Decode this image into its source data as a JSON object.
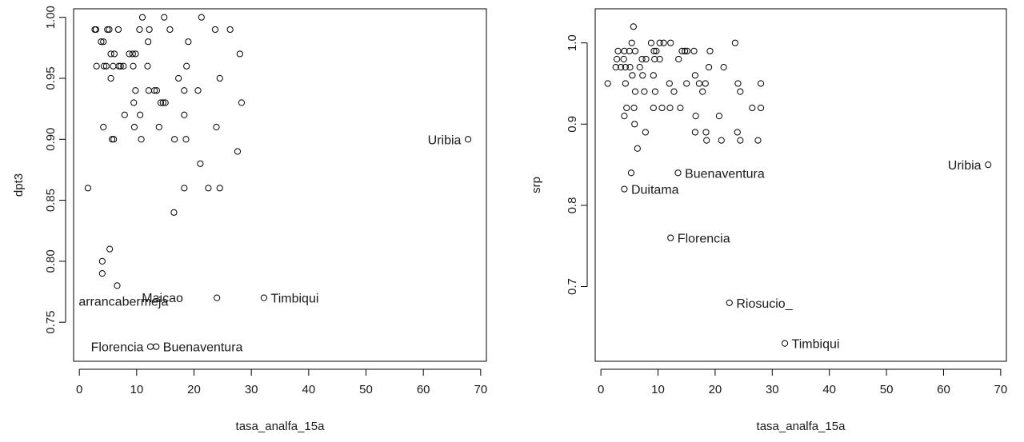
{
  "chart_data": [
    {
      "type": "scatter",
      "xlabel": "tasa_analfa_15a",
      "ylabel": "dpt3",
      "xlim": [
        -1,
        71
      ],
      "ylim": [
        0.718,
        1.007
      ],
      "x_ticks": [
        0,
        10,
        20,
        30,
        40,
        50,
        60,
        70
      ],
      "y_ticks": [
        0.75,
        0.8,
        0.85,
        0.9,
        0.95,
        1.0
      ],
      "y_tick_labels": [
        "0.75",
        "0.80",
        "0.85",
        "0.90",
        "0.95",
        "1.00"
      ],
      "points": [
        {
          "x": 2.7,
          "y": 0.99
        },
        {
          "x": 2.9,
          "y": 0.99
        },
        {
          "x": 4.9,
          "y": 0.99
        },
        {
          "x": 5.2,
          "y": 0.99
        },
        {
          "x": 6.8,
          "y": 0.99
        },
        {
          "x": 10.5,
          "y": 0.99
        },
        {
          "x": 12.2,
          "y": 0.99
        },
        {
          "x": 15.8,
          "y": 0.99
        },
        {
          "x": 23.7,
          "y": 0.99
        },
        {
          "x": 26.3,
          "y": 0.99
        },
        {
          "x": 11.0,
          "y": 1.0
        },
        {
          "x": 14.8,
          "y": 1.0
        },
        {
          "x": 21.3,
          "y": 1.0
        },
        {
          "x": 3.8,
          "y": 0.98
        },
        {
          "x": 4.2,
          "y": 0.98
        },
        {
          "x": 12.0,
          "y": 0.98
        },
        {
          "x": 19.0,
          "y": 0.98
        },
        {
          "x": 5.5,
          "y": 0.97
        },
        {
          "x": 6.1,
          "y": 0.97
        },
        {
          "x": 8.7,
          "y": 0.97
        },
        {
          "x": 9.3,
          "y": 0.97
        },
        {
          "x": 9.8,
          "y": 0.97
        },
        {
          "x": 28.0,
          "y": 0.97
        },
        {
          "x": 3.0,
          "y": 0.96
        },
        {
          "x": 4.3,
          "y": 0.96
        },
        {
          "x": 4.7,
          "y": 0.96
        },
        {
          "x": 5.9,
          "y": 0.96
        },
        {
          "x": 6.9,
          "y": 0.96
        },
        {
          "x": 7.2,
          "y": 0.96
        },
        {
          "x": 7.7,
          "y": 0.96
        },
        {
          "x": 9.4,
          "y": 0.96
        },
        {
          "x": 11.9,
          "y": 0.96
        },
        {
          "x": 18.7,
          "y": 0.96
        },
        {
          "x": 5.5,
          "y": 0.95
        },
        {
          "x": 17.3,
          "y": 0.95
        },
        {
          "x": 24.5,
          "y": 0.95
        },
        {
          "x": 9.8,
          "y": 0.94
        },
        {
          "x": 12.1,
          "y": 0.94
        },
        {
          "x": 13.1,
          "y": 0.94
        },
        {
          "x": 13.5,
          "y": 0.94
        },
        {
          "x": 18.3,
          "y": 0.94
        },
        {
          "x": 20.7,
          "y": 0.94
        },
        {
          "x": 9.5,
          "y": 0.93
        },
        {
          "x": 14.2,
          "y": 0.93
        },
        {
          "x": 14.6,
          "y": 0.93
        },
        {
          "x": 15.0,
          "y": 0.93
        },
        {
          "x": 28.3,
          "y": 0.93
        },
        {
          "x": 7.9,
          "y": 0.92
        },
        {
          "x": 10.6,
          "y": 0.92
        },
        {
          "x": 18.3,
          "y": 0.92
        },
        {
          "x": 4.2,
          "y": 0.91
        },
        {
          "x": 9.6,
          "y": 0.91
        },
        {
          "x": 13.9,
          "y": 0.91
        },
        {
          "x": 23.9,
          "y": 0.91
        },
        {
          "x": 5.7,
          "y": 0.9
        },
        {
          "x": 6.0,
          "y": 0.9
        },
        {
          "x": 10.8,
          "y": 0.9
        },
        {
          "x": 16.6,
          "y": 0.9
        },
        {
          "x": 18.6,
          "y": 0.9
        },
        {
          "x": 27.6,
          "y": 0.89
        },
        {
          "x": 21.1,
          "y": 0.88
        },
        {
          "x": 1.5,
          "y": 0.86
        },
        {
          "x": 18.3,
          "y": 0.86
        },
        {
          "x": 22.5,
          "y": 0.86
        },
        {
          "x": 24.5,
          "y": 0.86
        },
        {
          "x": 16.5,
          "y": 0.84
        },
        {
          "x": 5.3,
          "y": 0.81
        },
        {
          "x": 4.0,
          "y": 0.8
        },
        {
          "x": 4.0,
          "y": 0.79
        },
        {
          "x": 6.6,
          "y": 0.78
        },
        {
          "x": 24.0,
          "y": 0.77,
          "label": "Maicao"
        },
        {
          "x": 32.2,
          "y": 0.77,
          "label": "Timbiqui"
        },
        {
          "x": 67.8,
          "y": 0.9,
          "label": "Uribia"
        },
        {
          "x": 12.4,
          "y": 0.73,
          "label": "Florencia"
        },
        {
          "x": 13.4,
          "y": 0.73,
          "label": "Buenaventura"
        }
      ],
      "annotations": [
        {
          "text": "arrancabermeja",
          "x": 7.7,
          "y": 0.7675
        },
        {
          "text": "Maicao",
          "x": 18.1,
          "y": 0.7705
        },
        {
          "text": "Timbiqui",
          "x": 33.4,
          "y": 0.77
        },
        {
          "text": "Uribia",
          "x": 66.6,
          "y": 0.9
        },
        {
          "text": "Florencia",
          "x": 11.2,
          "y": 0.73
        },
        {
          "text": "Buenaventura",
          "x": 14.6,
          "y": 0.73
        }
      ]
    },
    {
      "type": "scatter",
      "xlabel": "tasa_analfa_15a",
      "ylabel": "srp",
      "xlim": [
        -1,
        71
      ],
      "ylim": [
        0.608,
        1.042
      ],
      "x_ticks": [
        0,
        10,
        20,
        30,
        40,
        50,
        60,
        70
      ],
      "y_ticks": [
        0.7,
        0.8,
        0.9,
        1.0
      ],
      "y_tick_labels": [
        "0.7",
        "0.8",
        "0.9",
        "1.0"
      ],
      "points": [
        {
          "x": 5.7,
          "y": 1.02
        },
        {
          "x": 5.4,
          "y": 1.0
        },
        {
          "x": 8.8,
          "y": 1.0
        },
        {
          "x": 10.3,
          "y": 1.0
        },
        {
          "x": 11.0,
          "y": 1.0
        },
        {
          "x": 12.2,
          "y": 1.0
        },
        {
          "x": 23.5,
          "y": 1.0
        },
        {
          "x": 3.0,
          "y": 0.99
        },
        {
          "x": 4.1,
          "y": 0.99
        },
        {
          "x": 5.0,
          "y": 0.99
        },
        {
          "x": 6.0,
          "y": 0.99
        },
        {
          "x": 9.3,
          "y": 0.99
        },
        {
          "x": 9.7,
          "y": 0.99
        },
        {
          "x": 14.2,
          "y": 0.99
        },
        {
          "x": 14.7,
          "y": 0.99
        },
        {
          "x": 15.1,
          "y": 0.99
        },
        {
          "x": 16.3,
          "y": 0.99
        },
        {
          "x": 19.1,
          "y": 0.99
        },
        {
          "x": 2.8,
          "y": 0.98
        },
        {
          "x": 4.0,
          "y": 0.98
        },
        {
          "x": 7.2,
          "y": 0.98
        },
        {
          "x": 7.9,
          "y": 0.98
        },
        {
          "x": 9.4,
          "y": 0.98
        },
        {
          "x": 10.3,
          "y": 0.98
        },
        {
          "x": 13.6,
          "y": 0.98
        },
        {
          "x": 2.6,
          "y": 0.97
        },
        {
          "x": 3.5,
          "y": 0.97
        },
        {
          "x": 4.3,
          "y": 0.97
        },
        {
          "x": 5.1,
          "y": 0.97
        },
        {
          "x": 6.8,
          "y": 0.97
        },
        {
          "x": 18.9,
          "y": 0.97
        },
        {
          "x": 21.5,
          "y": 0.97
        },
        {
          "x": 5.5,
          "y": 0.96
        },
        {
          "x": 7.3,
          "y": 0.96
        },
        {
          "x": 9.2,
          "y": 0.96
        },
        {
          "x": 16.5,
          "y": 0.96
        },
        {
          "x": 4.3,
          "y": 0.95
        },
        {
          "x": 1.2,
          "y": 0.95
        },
        {
          "x": 12.0,
          "y": 0.95
        },
        {
          "x": 15.0,
          "y": 0.95
        },
        {
          "x": 17.2,
          "y": 0.95
        },
        {
          "x": 18.3,
          "y": 0.95
        },
        {
          "x": 24.0,
          "y": 0.95
        },
        {
          "x": 28.0,
          "y": 0.95
        },
        {
          "x": 6.0,
          "y": 0.94
        },
        {
          "x": 7.6,
          "y": 0.94
        },
        {
          "x": 9.5,
          "y": 0.94
        },
        {
          "x": 12.8,
          "y": 0.94
        },
        {
          "x": 17.8,
          "y": 0.94
        },
        {
          "x": 24.4,
          "y": 0.94
        },
        {
          "x": 4.5,
          "y": 0.92
        },
        {
          "x": 5.8,
          "y": 0.92
        },
        {
          "x": 9.2,
          "y": 0.92
        },
        {
          "x": 10.7,
          "y": 0.92
        },
        {
          "x": 12.1,
          "y": 0.92
        },
        {
          "x": 13.9,
          "y": 0.92
        },
        {
          "x": 26.5,
          "y": 0.92
        },
        {
          "x": 28.0,
          "y": 0.92
        },
        {
          "x": 4.1,
          "y": 0.91
        },
        {
          "x": 16.6,
          "y": 0.91
        },
        {
          "x": 20.7,
          "y": 0.91
        },
        {
          "x": 5.9,
          "y": 0.9
        },
        {
          "x": 7.8,
          "y": 0.89
        },
        {
          "x": 16.5,
          "y": 0.89
        },
        {
          "x": 18.4,
          "y": 0.89
        },
        {
          "x": 23.9,
          "y": 0.89
        },
        {
          "x": 18.5,
          "y": 0.88
        },
        {
          "x": 21.1,
          "y": 0.88
        },
        {
          "x": 24.4,
          "y": 0.88
        },
        {
          "x": 27.5,
          "y": 0.88
        },
        {
          "x": 6.4,
          "y": 0.87
        },
        {
          "x": 5.3,
          "y": 0.84
        },
        {
          "x": 13.5,
          "y": 0.84,
          "label": "Buenaventura"
        },
        {
          "x": 4.1,
          "y": 0.82,
          "label": "Duitama"
        },
        {
          "x": 12.2,
          "y": 0.76,
          "label": "Florencia"
        },
        {
          "x": 22.5,
          "y": 0.68,
          "label": "Riosucio_"
        },
        {
          "x": 32.2,
          "y": 0.63,
          "label": "Timbiqui"
        },
        {
          "x": 67.8,
          "y": 0.85,
          "label": "Uribia"
        }
      ],
      "annotations": [
        {
          "text": "Buenaventura",
          "x": 14.7,
          "y": 0.84
        },
        {
          "text": "Duitama",
          "x": 5.3,
          "y": 0.82
        },
        {
          "text": "Florencia",
          "x": 13.4,
          "y": 0.76
        },
        {
          "text": "Riosucio_",
          "x": 23.7,
          "y": 0.68
        },
        {
          "text": "Timbiqui",
          "x": 33.4,
          "y": 0.63
        },
        {
          "text": "Uribia",
          "x": 66.6,
          "y": 0.85
        }
      ]
    }
  ]
}
